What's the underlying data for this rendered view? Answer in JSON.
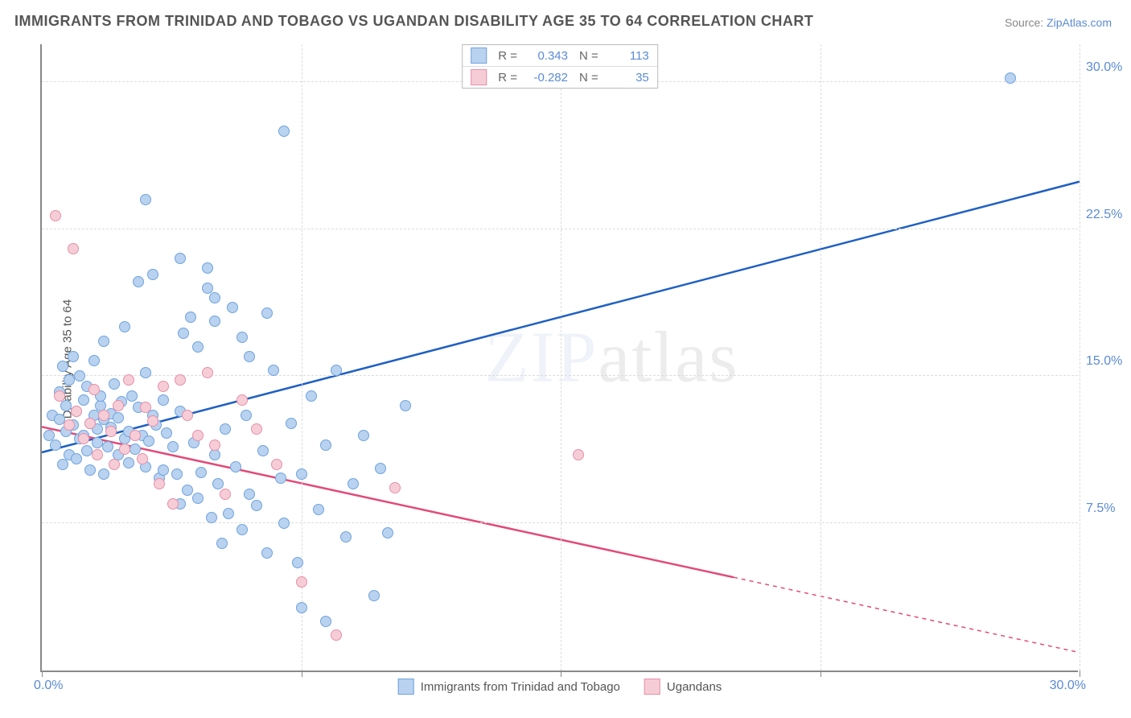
{
  "title": "IMMIGRANTS FROM TRINIDAD AND TOBAGO VS UGANDAN DISABILITY AGE 35 TO 64 CORRELATION CHART",
  "source_prefix": "Source: ",
  "source_name": "ZipAtlas.com",
  "y_axis_label": "Disability Age 35 to 64",
  "watermark_a": "ZIP",
  "watermark_b": "atlas",
  "chart": {
    "type": "scatter",
    "x_domain": [
      0,
      30
    ],
    "y_domain": [
      0,
      32
    ],
    "x_min_label": "0.0%",
    "x_max_label": "30.0%",
    "y_ticks": [
      {
        "v": 7.5,
        "label": "7.5%"
      },
      {
        "v": 15.0,
        "label": "15.0%"
      },
      {
        "v": 22.5,
        "label": "22.5%"
      },
      {
        "v": 30.0,
        "label": "30.0%"
      }
    ],
    "x_tick_positions": [
      0,
      7.5,
      15,
      22.5,
      30
    ],
    "grid_color": "#e0e0e0",
    "background": "#ffffff",
    "marker_radius": 7,
    "series": [
      {
        "key": "trinidad",
        "name": "Immigrants from Trinidad and Tobago",
        "fill": "#b9d2ef",
        "stroke": "#6fa3de",
        "line_color": "#1f5fc4",
        "R": "0.343",
        "N": "113",
        "trend": {
          "x1": 0,
          "y1": 11.2,
          "x2": 30,
          "y2": 25.0,
          "solid_to_x": 30
        },
        "points": [
          [
            0.2,
            12.0
          ],
          [
            0.3,
            13.0
          ],
          [
            0.4,
            11.5
          ],
          [
            0.5,
            12.8
          ],
          [
            0.5,
            14.2
          ],
          [
            0.6,
            15.5
          ],
          [
            0.6,
            10.5
          ],
          [
            0.7,
            13.5
          ],
          [
            0.7,
            12.2
          ],
          [
            0.8,
            11.0
          ],
          [
            0.8,
            14.8
          ],
          [
            0.9,
            16.0
          ],
          [
            0.9,
            12.5
          ],
          [
            1.0,
            13.2
          ],
          [
            1.0,
            10.8
          ],
          [
            1.1,
            11.8
          ],
          [
            1.1,
            15.0
          ],
          [
            1.2,
            12.0
          ],
          [
            1.2,
            13.8
          ],
          [
            1.3,
            14.5
          ],
          [
            1.3,
            11.2
          ],
          [
            1.4,
            12.6
          ],
          [
            1.4,
            10.2
          ],
          [
            1.5,
            13.0
          ],
          [
            1.5,
            15.8
          ],
          [
            1.6,
            12.3
          ],
          [
            1.6,
            11.6
          ],
          [
            1.7,
            13.5
          ],
          [
            1.7,
            14.0
          ],
          [
            1.8,
            12.8
          ],
          [
            1.8,
            10.0
          ],
          [
            1.9,
            11.4
          ],
          [
            2.0,
            13.1
          ],
          [
            2.0,
            12.4
          ],
          [
            2.1,
            14.6
          ],
          [
            2.2,
            11.0
          ],
          [
            2.2,
            12.9
          ],
          [
            2.3,
            13.7
          ],
          [
            2.4,
            11.8
          ],
          [
            2.5,
            10.6
          ],
          [
            2.5,
            12.2
          ],
          [
            2.6,
            14.0
          ],
          [
            2.7,
            11.3
          ],
          [
            2.8,
            13.4
          ],
          [
            2.9,
            12.0
          ],
          [
            3.0,
            15.2
          ],
          [
            3.0,
            10.4
          ],
          [
            3.1,
            11.7
          ],
          [
            3.2,
            13.0
          ],
          [
            3.3,
            12.5
          ],
          [
            3.4,
            9.8
          ],
          [
            3.5,
            10.2
          ],
          [
            3.5,
            13.8
          ],
          [
            3.6,
            12.1
          ],
          [
            3.8,
            11.4
          ],
          [
            3.9,
            10.0
          ],
          [
            4.0,
            13.2
          ],
          [
            4.0,
            8.5
          ],
          [
            4.1,
            17.2
          ],
          [
            4.2,
            9.2
          ],
          [
            4.3,
            18.0
          ],
          [
            4.4,
            11.6
          ],
          [
            4.5,
            8.8
          ],
          [
            4.5,
            16.5
          ],
          [
            4.6,
            10.1
          ],
          [
            4.8,
            19.5
          ],
          [
            4.9,
            7.8
          ],
          [
            5.0,
            11.0
          ],
          [
            5.0,
            17.8
          ],
          [
            5.1,
            9.5
          ],
          [
            5.2,
            6.5
          ],
          [
            5.3,
            12.3
          ],
          [
            5.4,
            8.0
          ],
          [
            5.5,
            18.5
          ],
          [
            5.6,
            10.4
          ],
          [
            5.8,
            7.2
          ],
          [
            5.9,
            13.0
          ],
          [
            6.0,
            16.0
          ],
          [
            6.0,
            9.0
          ],
          [
            6.2,
            8.4
          ],
          [
            6.4,
            11.2
          ],
          [
            6.5,
            6.0
          ],
          [
            6.7,
            15.3
          ],
          [
            6.9,
            9.8
          ],
          [
            7.0,
            7.5
          ],
          [
            7.2,
            12.6
          ],
          [
            7.4,
            5.5
          ],
          [
            7.5,
            10.0
          ],
          [
            7.8,
            14.0
          ],
          [
            8.0,
            8.2
          ],
          [
            8.2,
            11.5
          ],
          [
            8.5,
            15.3
          ],
          [
            8.8,
            6.8
          ],
          [
            9.0,
            9.5
          ],
          [
            9.3,
            12.0
          ],
          [
            9.6,
            3.8
          ],
          [
            9.8,
            10.3
          ],
          [
            10.0,
            7.0
          ],
          [
            10.5,
            13.5
          ],
          [
            2.8,
            19.8
          ],
          [
            3.0,
            24.0
          ],
          [
            4.0,
            21.0
          ],
          [
            4.8,
            20.5
          ],
          [
            5.0,
            19.0
          ],
          [
            5.8,
            17.0
          ],
          [
            6.5,
            18.2
          ],
          [
            7.0,
            27.5
          ],
          [
            3.2,
            20.2
          ],
          [
            1.8,
            16.8
          ],
          [
            2.4,
            17.5
          ],
          [
            7.5,
            3.2
          ],
          [
            8.2,
            2.5
          ],
          [
            28.0,
            30.2
          ]
        ]
      },
      {
        "key": "ugandan",
        "name": "Ugandans",
        "fill": "#f6cdd7",
        "stroke": "#e78fa7",
        "line_color": "#e24a78",
        "R": "-0.282",
        "N": "35",
        "trend": {
          "x1": 0,
          "y1": 12.5,
          "x2": 30,
          "y2": 1.0,
          "solid_to_x": 20
        },
        "points": [
          [
            0.4,
            23.2
          ],
          [
            0.9,
            21.5
          ],
          [
            0.5,
            14.0
          ],
          [
            0.8,
            12.5
          ],
          [
            1.0,
            13.2
          ],
          [
            1.2,
            11.8
          ],
          [
            1.4,
            12.6
          ],
          [
            1.5,
            14.3
          ],
          [
            1.6,
            11.0
          ],
          [
            1.8,
            13.0
          ],
          [
            2.0,
            12.2
          ],
          [
            2.1,
            10.5
          ],
          [
            2.2,
            13.5
          ],
          [
            2.4,
            11.3
          ],
          [
            2.5,
            14.8
          ],
          [
            2.7,
            12.0
          ],
          [
            2.9,
            10.8
          ],
          [
            3.0,
            13.4
          ],
          [
            3.2,
            12.7
          ],
          [
            3.4,
            9.5
          ],
          [
            3.5,
            14.5
          ],
          [
            3.8,
            8.5
          ],
          [
            4.0,
            14.8
          ],
          [
            4.2,
            13.0
          ],
          [
            4.5,
            12.0
          ],
          [
            4.8,
            15.2
          ],
          [
            5.0,
            11.5
          ],
          [
            5.3,
            9.0
          ],
          [
            5.8,
            13.8
          ],
          [
            6.2,
            12.3
          ],
          [
            6.8,
            10.5
          ],
          [
            7.5,
            4.5
          ],
          [
            8.5,
            1.8
          ],
          [
            10.2,
            9.3
          ],
          [
            15.5,
            11.0
          ]
        ]
      }
    ]
  }
}
